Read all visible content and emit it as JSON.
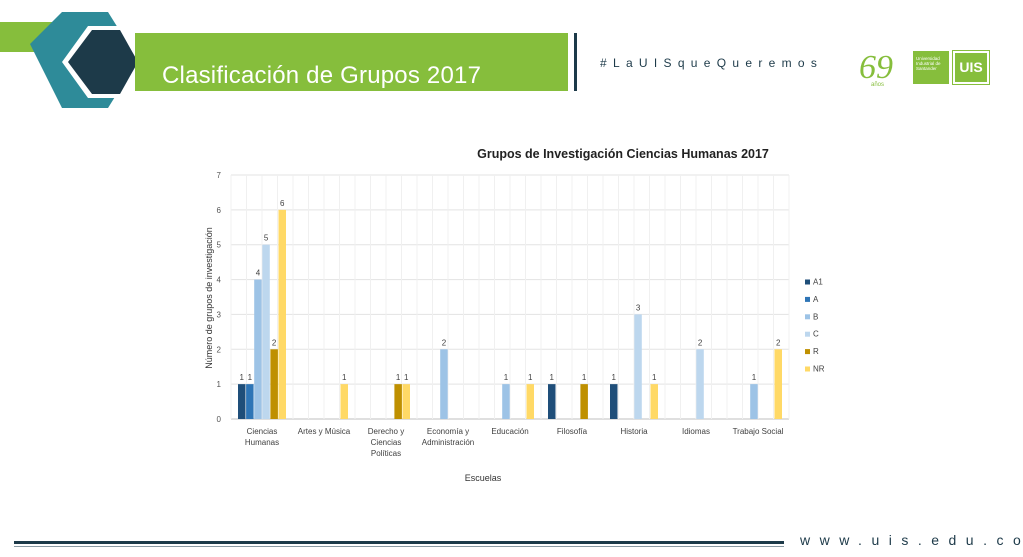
{
  "header": {
    "title": "Clasificación de Grupos 2017",
    "hashtag": "#LaUISqueQueremos",
    "anniversary_logo": {
      "number": "69",
      "caption": "años"
    },
    "university_name": [
      "Universidad",
      "Industrial de",
      "Santander"
    ],
    "uis_logo_text": "UIS"
  },
  "footer": {
    "url": "www.uis.edu.co"
  },
  "colors": {
    "banner_green": "#86be3c",
    "dark_navy": "#1d3a49",
    "teal": "#2e8b99"
  },
  "chart_data": {
    "type": "bar",
    "title": "Grupos de Investigación Ciencias Humanas 2017",
    "xlabel": "Escuelas",
    "ylabel": "Número de grupos de investigación",
    "ylim": [
      0,
      7
    ],
    "yticks": [
      "0",
      "1",
      "2",
      "3",
      "4",
      "5",
      "6",
      "7"
    ],
    "grid": true,
    "legend_position": "right",
    "categories": [
      [
        "Ciencias",
        "Humanas"
      ],
      [
        "Artes y Música"
      ],
      [
        "Derecho y",
        "Ciencias",
        "Políticas"
      ],
      [
        "Economía y",
        "Administración"
      ],
      [
        "Educación"
      ],
      [
        "Filosofía"
      ],
      [
        "Historia"
      ],
      [
        "Idiomas"
      ],
      [
        "Trabajo Social"
      ]
    ],
    "series": [
      {
        "name": "A1",
        "color": "#1f4e79",
        "values": [
          1,
          null,
          null,
          null,
          null,
          1,
          1,
          null,
          null
        ]
      },
      {
        "name": "A",
        "color": "#2e75b6",
        "values": [
          1,
          null,
          null,
          null,
          null,
          null,
          null,
          null,
          null
        ]
      },
      {
        "name": "B",
        "color": "#9dc3e6",
        "values": [
          4,
          null,
          null,
          2,
          1,
          null,
          null,
          null,
          1
        ]
      },
      {
        "name": "C",
        "color": "#bdd7ee",
        "values": [
          5,
          null,
          null,
          null,
          null,
          null,
          3,
          2,
          null
        ]
      },
      {
        "name": "R",
        "color": "#bf9000",
        "values": [
          2,
          null,
          1,
          null,
          null,
          1,
          null,
          null,
          null
        ]
      },
      {
        "name": "NR",
        "color": "#ffd966",
        "values": [
          6,
          1,
          1,
          null,
          1,
          null,
          1,
          null,
          2
        ]
      }
    ]
  }
}
